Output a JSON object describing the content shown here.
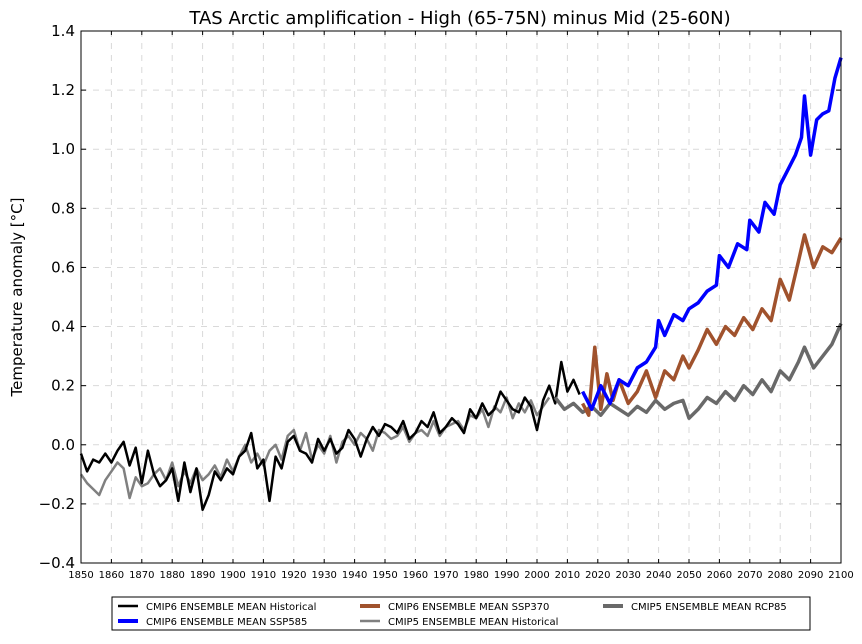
{
  "chart_data": {
    "type": "line",
    "title": "TAS Arctic amplification - High (65-75N) minus Mid (25-60N)",
    "xlabel": "",
    "ylabel": "Temperature anomaly [°C]",
    "xlim": [
      1850,
      2100
    ],
    "ylim": [
      -0.4,
      1.4
    ],
    "x_ticks": [
      1850,
      1860,
      1870,
      1880,
      1890,
      1900,
      1910,
      1920,
      1930,
      1940,
      1950,
      1960,
      1970,
      1980,
      1990,
      2000,
      2010,
      2020,
      2030,
      2040,
      2050,
      2060,
      2070,
      2080,
      2090,
      2100
    ],
    "y_ticks": [
      -0.4,
      -0.2,
      0.0,
      0.2,
      0.4,
      0.6,
      0.8,
      1.0,
      1.2,
      1.4
    ],
    "y_tick_labels": [
      "−0.4",
      "−0.2",
      "0.0",
      "0.2",
      "0.4",
      "0.6",
      "0.8",
      "1.0",
      "1.2",
      "1.4"
    ],
    "grid": true,
    "legend_position": "bottom-outside",
    "series": [
      {
        "name": "CMIP6 ENSEMBLE MEAN Historical",
        "color": "#000000",
        "x": [
          1850,
          1852,
          1854,
          1856,
          1858,
          1860,
          1862,
          1864,
          1866,
          1868,
          1870,
          1872,
          1874,
          1876,
          1878,
          1880,
          1882,
          1884,
          1886,
          1888,
          1890,
          1892,
          1894,
          1896,
          1898,
          1900,
          1902,
          1904,
          1906,
          1908,
          1910,
          1912,
          1914,
          1916,
          1918,
          1920,
          1922,
          1924,
          1926,
          1928,
          1930,
          1932,
          1934,
          1936,
          1938,
          1940,
          1942,
          1944,
          1946,
          1948,
          1950,
          1952,
          1954,
          1956,
          1958,
          1960,
          1962,
          1964,
          1966,
          1968,
          1970,
          1972,
          1974,
          1976,
          1978,
          1980,
          1982,
          1984,
          1986,
          1988,
          1990,
          1992,
          1994,
          1996,
          1998,
          2000,
          2002,
          2004,
          2006,
          2008,
          2010,
          2012,
          2014
        ],
        "values": [
          -0.03,
          -0.09,
          -0.05,
          -0.06,
          -0.03,
          -0.06,
          -0.02,
          0.01,
          -0.07,
          -0.01,
          -0.13,
          -0.02,
          -0.1,
          -0.14,
          -0.12,
          -0.08,
          -0.19,
          -0.06,
          -0.16,
          -0.08,
          -0.22,
          -0.17,
          -0.09,
          -0.12,
          -0.08,
          -0.1,
          -0.04,
          -0.02,
          0.04,
          -0.08,
          -0.05,
          -0.19,
          -0.04,
          -0.08,
          0.01,
          0.03,
          -0.02,
          -0.03,
          -0.06,
          0.02,
          -0.02,
          0.02,
          -0.03,
          -0.01,
          0.05,
          0.02,
          -0.04,
          0.02,
          0.06,
          0.03,
          0.07,
          0.06,
          0.04,
          0.08,
          0.02,
          0.04,
          0.08,
          0.06,
          0.11,
          0.04,
          0.06,
          0.09,
          0.07,
          0.04,
          0.12,
          0.09,
          0.14,
          0.1,
          0.12,
          0.18,
          0.15,
          0.12,
          0.11,
          0.16,
          0.13,
          0.05,
          0.15,
          0.2,
          0.14,
          0.28,
          0.18,
          0.22,
          0.17
        ]
      },
      {
        "name": "CMIP6 ENSEMBLE MEAN SSP585",
        "color": "#0000ff",
        "x": [
          2015,
          2018,
          2021,
          2024,
          2027,
          2030,
          2033,
          2036,
          2039,
          2040,
          2042,
          2045,
          2048,
          2050,
          2053,
          2056,
          2059,
          2060,
          2063,
          2066,
          2069,
          2070,
          2073,
          2075,
          2078,
          2080,
          2082,
          2085,
          2087,
          2088,
          2090,
          2092,
          2094,
          2096,
          2098,
          2100
        ],
        "values": [
          0.18,
          0.12,
          0.2,
          0.14,
          0.22,
          0.2,
          0.26,
          0.28,
          0.33,
          0.42,
          0.37,
          0.44,
          0.42,
          0.46,
          0.48,
          0.52,
          0.54,
          0.64,
          0.6,
          0.68,
          0.66,
          0.76,
          0.72,
          0.82,
          0.78,
          0.88,
          0.92,
          0.98,
          1.04,
          1.18,
          0.98,
          1.1,
          1.12,
          1.13,
          1.24,
          1.31
        ]
      },
      {
        "name": "CMIP6 ENSEMBLE MEAN SSP370",
        "color": "#a0522d",
        "x": [
          2015,
          2017,
          2019,
          2021,
          2023,
          2025,
          2027,
          2030,
          2033,
          2036,
          2039,
          2042,
          2045,
          2048,
          2050,
          2053,
          2056,
          2059,
          2062,
          2065,
          2068,
          2071,
          2074,
          2077,
          2080,
          2083,
          2086,
          2088,
          2091,
          2094,
          2097,
          2100
        ],
        "values": [
          0.14,
          0.1,
          0.33,
          0.12,
          0.24,
          0.15,
          0.22,
          0.14,
          0.18,
          0.25,
          0.16,
          0.25,
          0.22,
          0.3,
          0.26,
          0.32,
          0.39,
          0.34,
          0.4,
          0.37,
          0.43,
          0.39,
          0.46,
          0.42,
          0.56,
          0.49,
          0.62,
          0.71,
          0.6,
          0.67,
          0.65,
          0.7
        ]
      },
      {
        "name": "CMIP5 ENSEMBLE MEAN Historical",
        "color": "#808080",
        "x": [
          1850,
          1852,
          1854,
          1856,
          1858,
          1860,
          1862,
          1864,
          1866,
          1868,
          1870,
          1872,
          1874,
          1876,
          1878,
          1880,
          1882,
          1884,
          1886,
          1888,
          1890,
          1892,
          1894,
          1896,
          1898,
          1900,
          1902,
          1904,
          1906,
          1908,
          1910,
          1912,
          1914,
          1916,
          1918,
          1920,
          1922,
          1924,
          1926,
          1928,
          1930,
          1932,
          1934,
          1936,
          1938,
          1940,
          1942,
          1944,
          1946,
          1948,
          1950,
          1952,
          1954,
          1956,
          1958,
          1960,
          1962,
          1964,
          1966,
          1968,
          1970,
          1972,
          1974,
          1976,
          1978,
          1980,
          1982,
          1984,
          1986,
          1988,
          1990,
          1992,
          1994,
          1996,
          1998,
          2000,
          2002,
          2004
        ],
        "values": [
          -0.1,
          -0.13,
          -0.15,
          -0.17,
          -0.12,
          -0.09,
          -0.06,
          -0.08,
          -0.18,
          -0.11,
          -0.14,
          -0.13,
          -0.1,
          -0.08,
          -0.12,
          -0.06,
          -0.14,
          -0.09,
          -0.13,
          -0.08,
          -0.12,
          -0.1,
          -0.07,
          -0.11,
          -0.05,
          -0.09,
          -0.04,
          0.0,
          -0.06,
          -0.03,
          -0.07,
          -0.02,
          0.0,
          -0.05,
          0.03,
          0.05,
          -0.02,
          0.04,
          -0.05,
          0.0,
          -0.03,
          0.03,
          -0.06,
          0.01,
          0.03,
          0.0,
          0.04,
          0.02,
          -0.02,
          0.05,
          0.04,
          0.02,
          0.03,
          0.06,
          0.01,
          0.04,
          0.05,
          0.03,
          0.08,
          0.03,
          0.06,
          0.07,
          0.08,
          0.05,
          0.1,
          0.09,
          0.12,
          0.06,
          0.13,
          0.11,
          0.16,
          0.09,
          0.14,
          0.11,
          0.15,
          0.1,
          0.13,
          0.16
        ]
      },
      {
        "name": "CMIP5 ENSEMBLE MEAN RCP85",
        "color": "#696969",
        "x": [
          2006,
          2009,
          2012,
          2015,
          2018,
          2021,
          2024,
          2027,
          2030,
          2033,
          2036,
          2039,
          2042,
          2045,
          2048,
          2050,
          2053,
          2056,
          2059,
          2062,
          2065,
          2068,
          2071,
          2074,
          2077,
          2080,
          2083,
          2086,
          2088,
          2091,
          2094,
          2097,
          2100
        ],
        "values": [
          0.16,
          0.12,
          0.14,
          0.11,
          0.13,
          0.1,
          0.14,
          0.12,
          0.1,
          0.13,
          0.11,
          0.15,
          0.12,
          0.14,
          0.15,
          0.09,
          0.12,
          0.16,
          0.14,
          0.18,
          0.15,
          0.2,
          0.17,
          0.22,
          0.18,
          0.25,
          0.22,
          0.28,
          0.33,
          0.26,
          0.3,
          0.34,
          0.41
        ]
      }
    ]
  }
}
